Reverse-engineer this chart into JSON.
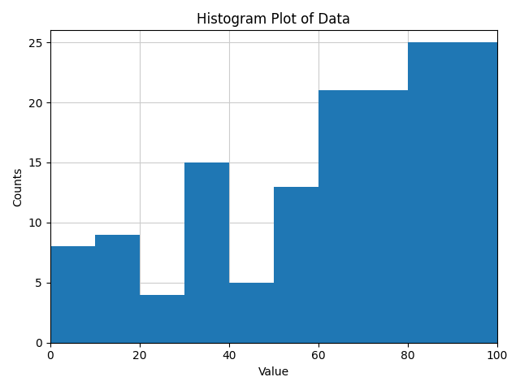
{
  "title": "Histogram Plot of Data",
  "xlabel": "Value",
  "ylabel": "Counts",
  "bar_color": "#1f77b4",
  "bin_edges": [
    0,
    10,
    20,
    30,
    40,
    50,
    60,
    80,
    100
  ],
  "counts": [
    8,
    9,
    4,
    15,
    5,
    13,
    21,
    25
  ],
  "xlim": [
    0,
    100
  ],
  "ylim": [
    0,
    26
  ],
  "yticks": [
    0,
    5,
    10,
    15,
    20,
    25
  ],
  "xticks": [
    0,
    20,
    40,
    60,
    80,
    100
  ],
  "grid": true,
  "figsize": [
    6.4,
    4.8
  ],
  "dpi": 100
}
